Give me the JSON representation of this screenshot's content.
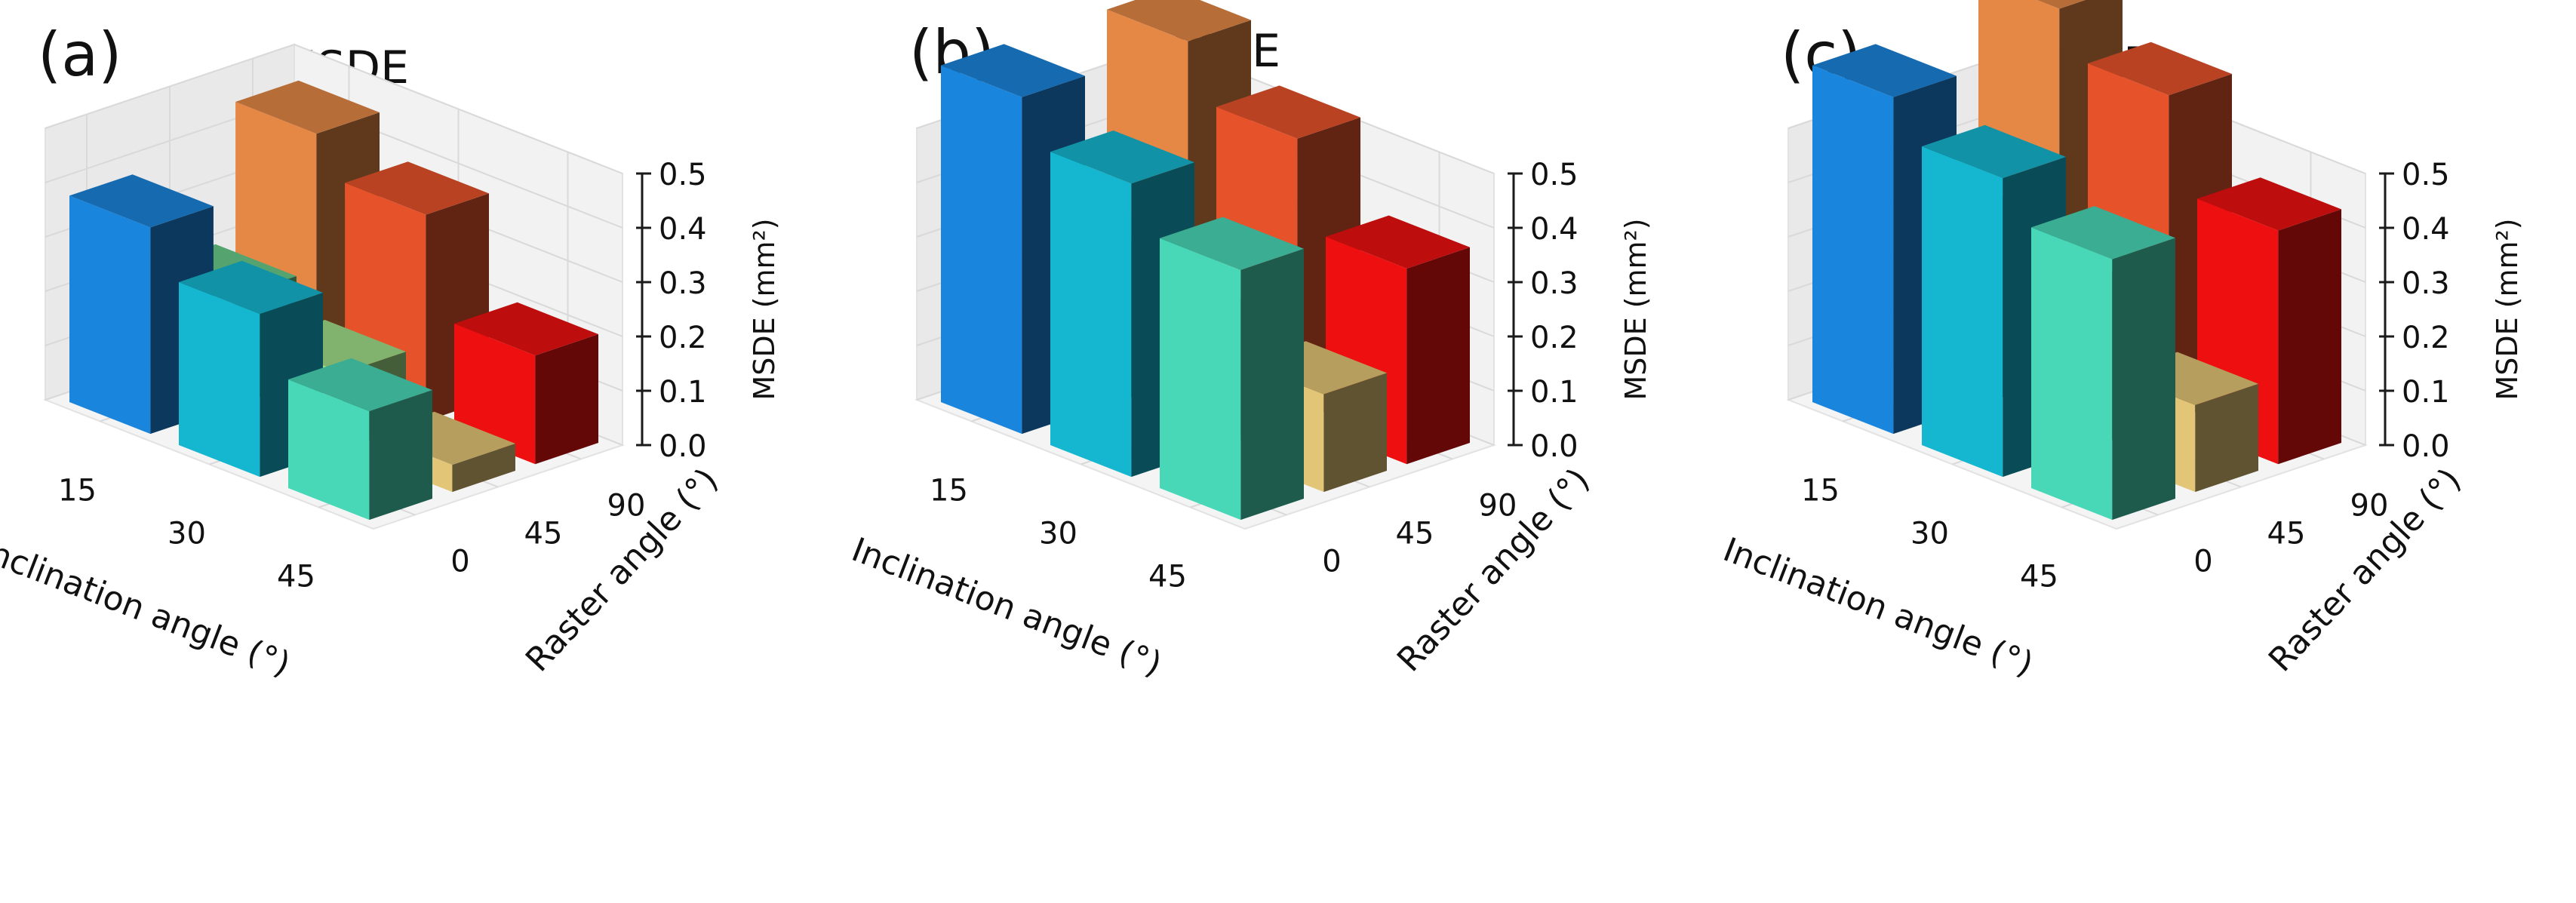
{
  "figure": {
    "z_ticks": [
      "0.0",
      "0.1",
      "0.2",
      "0.3",
      "0.4",
      "0.5"
    ],
    "inclination_ticks": [
      "15",
      "30",
      "45"
    ],
    "raster_ticks": [
      "0",
      "45",
      "90"
    ]
  },
  "chart_data": [
    {
      "type": "bar",
      "panel": "(a)",
      "title": "MSDE",
      "xlabel": "Inclination angle (°)",
      "ylabel": "Raster angle (°)",
      "zlabel": "MSDE (mm²)",
      "zlim": [
        0,
        0.5
      ],
      "x": [
        "15",
        "30",
        "45"
      ],
      "y": [
        "0",
        "45",
        "90"
      ],
      "series": [
        {
          "name": "Raster angle 0°",
          "values": [
            0.38,
            0.3,
            0.2
          ]
        },
        {
          "name": "Raster angle 45°",
          "values": [
            0.2,
            0.14,
            0.05
          ]
        },
        {
          "name": "Raster angle 90°",
          "values": [
            0.45,
            0.38,
            0.2
          ]
        }
      ]
    },
    {
      "type": "bar",
      "panel": "(b)",
      "title": "MSDE",
      "xlabel": "Inclination angle (°)",
      "ylabel": "Raster angle (°)",
      "zlabel": "MSDE (mm²)",
      "zlim": [
        0,
        0.5
      ],
      "x": [
        "15",
        "30",
        "45"
      ],
      "y": [
        "0",
        "45",
        "90"
      ],
      "series": [
        {
          "name": "Raster angle 0°",
          "values": [
            0.62,
            0.54,
            0.46
          ]
        },
        {
          "name": "Raster angle 45°",
          "values": [
            0.29,
            0.26,
            0.18
          ]
        },
        {
          "name": "Raster angle 90°",
          "values": [
            0.62,
            0.52,
            0.36
          ]
        }
      ]
    },
    {
      "type": "bar",
      "panel": "(c)",
      "title": "MSDE",
      "xlabel": "Inclination angle (°)",
      "ylabel": "Raster angle (°)",
      "zlabel": "MSDE (mm²)",
      "zlim": [
        0,
        0.5
      ],
      "x": [
        "15",
        "30",
        "45"
      ],
      "y": [
        "0",
        "45",
        "90"
      ],
      "series": [
        {
          "name": "Raster angle 0°",
          "values": [
            0.62,
            0.55,
            0.48
          ]
        },
        {
          "name": "Raster angle 45°",
          "values": [
            0.37,
            0.31,
            0.16
          ]
        },
        {
          "name": "Raster angle 90°",
          "values": [
            0.68,
            0.6,
            0.43
          ]
        }
      ]
    }
  ],
  "colors": {
    "x0y0": "#1a85dc",
    "x1y0": "#15b6cf",
    "x2y0": "#48d8b8",
    "x0y1": "#6acd8c",
    "x1y1": "#a3e08a",
    "x2y1": "#e3c577",
    "x0y2": "#e58846",
    "x1y2": "#e6532a",
    "x2y2": "#ee1010",
    "pane": "#f2f2f2",
    "pane_side": "#e9e9e9",
    "pane_floor": "#f4f4f4",
    "grid": "#d9d9d9",
    "axis": "#1a1a1a"
  }
}
